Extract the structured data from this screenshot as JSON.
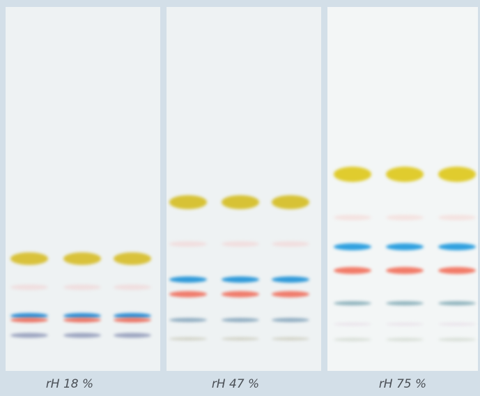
{
  "panels": [
    {
      "label": "rH 18 %"
    },
    {
      "label": "rH 47 %"
    },
    {
      "label": "rH 75 %"
    }
  ]
}
